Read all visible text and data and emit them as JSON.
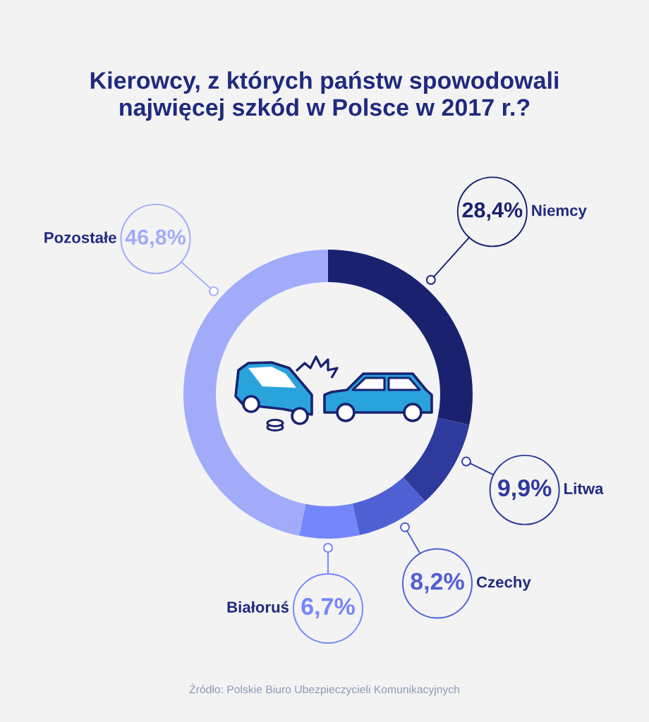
{
  "chart_data": {
    "type": "donut",
    "title": "Kierowcy, z których państw spowodowali\nnajwięcej szkód w Polsce w 2017 r.?",
    "categories": [
      "Niemcy",
      "Litwa",
      "Czechy",
      "Białoruś",
      "Pozostałe"
    ],
    "values": [
      28.4,
      9.9,
      8.2,
      6.7,
      46.8
    ],
    "colors": [
      "#1a2270",
      "#2e3a9c",
      "#4f5fd4",
      "#7585fb",
      "#a1abf9"
    ],
    "value_labels": [
      "28,4%",
      "9,9%",
      "8,2%",
      "6,7%",
      "46,8%"
    ],
    "annotations": [
      "Źródło: Polskie Biuro Ubezpieczycieli Komunikacyjnych"
    ]
  }
}
